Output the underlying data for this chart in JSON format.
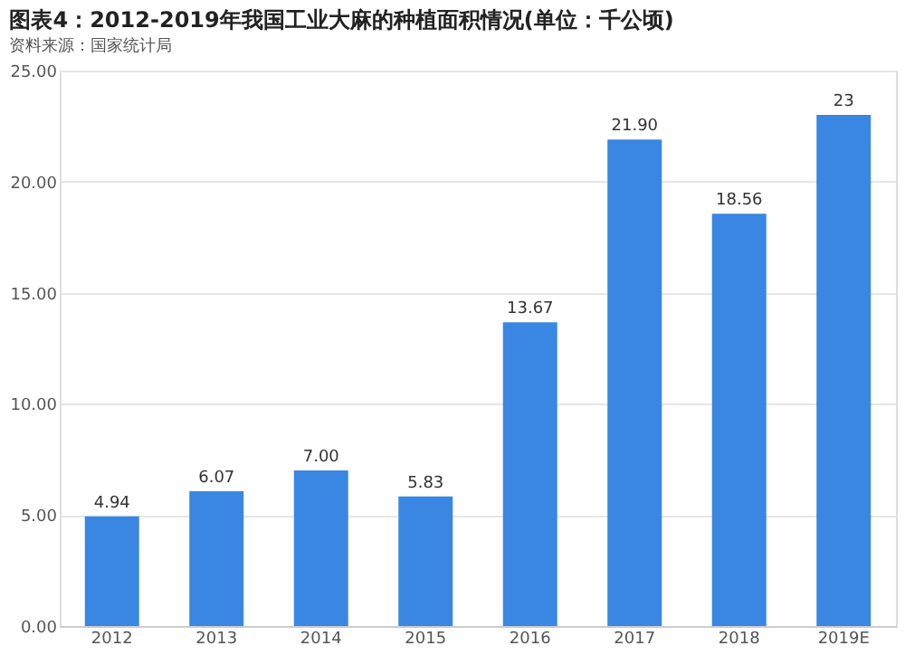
{
  "chart_data": {
    "type": "bar",
    "title": "图表4：2012-2019年我国工业大麻的种植面积情况(单位：千公顷)",
    "categories": [
      "2012",
      "2013",
      "2014",
      "2015",
      "2016",
      "2017",
      "2018",
      "2019E"
    ],
    "values": [
      4.94,
      6.07,
      7.0,
      5.83,
      13.67,
      21.9,
      18.56,
      23
    ],
    "value_labels": [
      "4.94",
      "6.07",
      "7.00",
      "5.83",
      "13.67",
      "21.90",
      "18.56",
      "23"
    ],
    "color": "#3a86e3",
    "ylim": [
      0,
      25
    ],
    "yticks": [
      {
        "value": 0,
        "label": "0.00"
      },
      {
        "value": 5,
        "label": "5.00"
      },
      {
        "value": 10,
        "label": "10.00"
      },
      {
        "value": 15,
        "label": "15.00"
      },
      {
        "value": 20,
        "label": "20.00"
      },
      {
        "value": 25,
        "label": "25.00"
      }
    ],
    "grid": "y",
    "annotations": [
      "资料来源：国家统计局"
    ]
  }
}
